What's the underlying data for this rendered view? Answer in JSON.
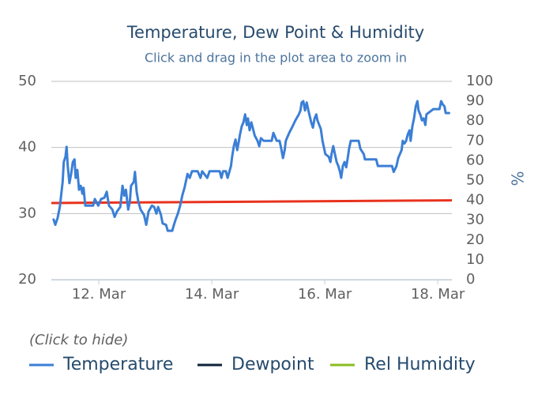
{
  "chart_data": {
    "type": "line",
    "title": "Temperature, Dew Point & Humidity",
    "subtitle": "Click and drag in the plot area to zoom in",
    "y2_label": "%",
    "legend_title": "(Click to hide)",
    "legend_position": "bottom-left",
    "grid": true,
    "xlim": [
      11.16,
      18.25
    ],
    "xticks": [
      {
        "value": 12,
        "label": "12. Mar"
      },
      {
        "value": 14,
        "label": "14. Mar"
      },
      {
        "value": 16,
        "label": "16. Mar"
      },
      {
        "value": 18,
        "label": "18. Mar"
      }
    ],
    "ylim": [
      20,
      50
    ],
    "yticks": [
      20,
      30,
      40,
      50
    ],
    "y2lim": [
      0,
      100
    ],
    "y2ticks": [
      0,
      10,
      20,
      30,
      40,
      50,
      60,
      70,
      80,
      90,
      100
    ],
    "plot_line": {
      "color": "#e8321e",
      "x": [
        11.16,
        18.25
      ],
      "values": [
        31.6,
        32.0
      ]
    },
    "series": [
      {
        "name": "Temperature",
        "color": "#3b7fd6",
        "x": [
          11.2,
          11.23,
          11.27,
          11.31,
          11.36,
          11.38,
          11.41,
          11.43,
          11.45,
          11.48,
          11.51,
          11.54,
          11.57,
          11.59,
          11.62,
          11.65,
          11.68,
          11.71,
          11.73,
          11.76,
          11.9,
          11.93,
          11.99,
          12.04,
          12.1,
          12.14,
          12.18,
          12.24,
          12.28,
          12.32,
          12.38,
          12.42,
          12.45,
          12.48,
          12.52,
          12.55,
          12.57,
          12.62,
          12.64,
          12.67,
          12.7,
          12.74,
          12.8,
          12.84,
          12.88,
          12.94,
          12.98,
          13.02,
          13.05,
          13.08,
          13.1,
          13.13,
          13.19,
          13.22,
          13.3,
          13.33,
          13.36,
          13.4,
          13.44,
          13.48,
          13.52,
          13.57,
          13.61,
          13.65,
          13.75,
          13.8,
          13.83,
          13.92,
          13.96,
          14.14,
          14.17,
          14.2,
          14.25,
          14.28,
          14.34,
          14.36,
          14.39,
          14.42,
          14.45,
          14.48,
          14.5,
          14.53,
          14.56,
          14.59,
          14.62,
          14.64,
          14.67,
          14.7,
          14.73,
          14.76,
          14.81,
          14.84,
          14.87,
          14.92,
          15.06,
          15.09,
          15.15,
          15.2,
          15.23,
          15.26,
          15.29,
          15.31,
          15.37,
          15.43,
          15.48,
          15.54,
          15.57,
          15.59,
          15.62,
          15.65,
          15.68,
          15.71,
          15.76,
          15.79,
          15.82,
          15.85,
          15.87,
          15.93,
          15.96,
          15.99,
          16.01,
          16.07,
          16.1,
          16.12,
          16.15,
          16.18,
          16.21,
          16.24,
          16.27,
          16.29,
          16.32,
          16.35,
          16.38,
          16.41,
          16.43,
          16.46,
          16.6,
          16.63,
          16.69,
          16.71,
          16.91,
          16.94,
          17.19,
          17.22,
          17.27,
          17.3,
          17.33,
          17.36,
          17.38,
          17.41,
          17.44,
          17.47,
          17.5,
          17.52,
          17.55,
          17.58,
          17.61,
          17.64,
          17.66,
          17.69,
          17.72,
          17.75,
          17.78,
          17.8,
          17.92,
          18.03,
          18.06,
          18.09,
          18.12,
          18.14,
          18.2
        ],
        "values": [
          29.1,
          28.3,
          29.3,
          31.0,
          34.8,
          37.8,
          38.6,
          40.1,
          37.2,
          34.6,
          36.0,
          37.8,
          38.2,
          35.4,
          36.6,
          33.6,
          34.2,
          33.0,
          33.9,
          31.2,
          31.2,
          32.2,
          31.2,
          32.2,
          32.4,
          33.3,
          31.2,
          30.6,
          29.5,
          30.3,
          31.0,
          34.2,
          32.7,
          33.6,
          30.6,
          31.8,
          34.2,
          34.8,
          36.3,
          33.3,
          31.8,
          30.6,
          29.8,
          28.3,
          30.3,
          31.2,
          31.0,
          30.0,
          31.0,
          30.3,
          29.8,
          28.5,
          28.3,
          27.4,
          27.4,
          28.3,
          29.1,
          30.0,
          31.2,
          32.8,
          34.0,
          36.0,
          35.4,
          36.4,
          36.4,
          35.4,
          36.4,
          35.4,
          36.4,
          36.4,
          35.4,
          36.4,
          36.4,
          35.4,
          37.2,
          38.6,
          40.2,
          41.2,
          39.6,
          41.0,
          42.0,
          43.2,
          43.8,
          45.0,
          43.4,
          44.4,
          42.6,
          43.8,
          42.8,
          41.8,
          41.0,
          40.2,
          41.4,
          41.0,
          41.0,
          42.2,
          41.0,
          41.0,
          39.8,
          38.4,
          39.6,
          41.0,
          42.2,
          43.2,
          44.1,
          45.0,
          45.6,
          46.8,
          47.0,
          45.6,
          46.8,
          45.6,
          43.8,
          43.0,
          44.4,
          45.0,
          44.1,
          42.8,
          41.0,
          39.8,
          39.0,
          38.6,
          37.8,
          39.0,
          40.2,
          39.0,
          37.8,
          37.2,
          36.3,
          35.4,
          37.2,
          37.8,
          37.0,
          38.6,
          39.8,
          41.0,
          41.0,
          39.8,
          39.0,
          38.2,
          38.2,
          37.2,
          37.2,
          36.3,
          37.2,
          38.4,
          39.0,
          39.6,
          41.0,
          40.6,
          41.0,
          42.0,
          42.6,
          41.0,
          43.2,
          44.4,
          46.2,
          47.0,
          45.6,
          45.0,
          44.1,
          44.4,
          43.4,
          45.0,
          45.8,
          45.8,
          47.0,
          46.5,
          46.2,
          45.2,
          45.2
        ]
      },
      {
        "name": "Dewpoint",
        "color": "#0d233a",
        "x": [],
        "values": []
      },
      {
        "name": "Rel Humidity",
        "color": "#8bbc21",
        "x": [],
        "values": [],
        "axis": "y2"
      }
    ]
  }
}
